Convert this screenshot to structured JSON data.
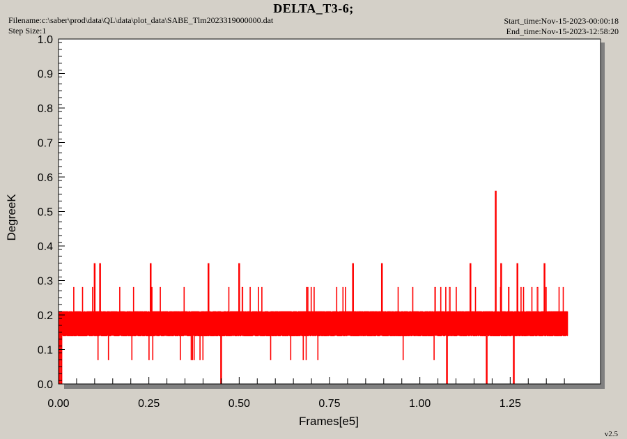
{
  "header": {
    "title": "DELTA_T3-6;",
    "filename": "Filename:c:\\saber\\prod\\data\\QL\\data\\plot_data\\SABE_Tlm2023319000000.dat",
    "step_size": "Step Size:1",
    "start_time": "Start_time:Nov-15-2023-00:00:18",
    "end_time": "End_time:Nov-15-2023-12:58:20",
    "version": "v2.5"
  },
  "colors": {
    "background": "#d4d0c8",
    "plot_area": "#ffffff",
    "series": "#ff0000",
    "shadow": "#808080"
  },
  "chart_data": {
    "type": "line",
    "title": "DELTA_T3-6;",
    "xlabel": "Frames[e5]",
    "ylabel": "DegreeK",
    "xlim": [
      0,
      1.5
    ],
    "ylim": [
      0,
      1.0
    ],
    "xticks": [
      "0.00",
      "0.25",
      "0.50",
      "0.75",
      "1.00",
      "1.25"
    ],
    "yticks": [
      "0.0",
      "0.1",
      "0.2",
      "0.3",
      "0.4",
      "0.5",
      "0.6",
      "0.7",
      "0.8",
      "0.9",
      "1.0"
    ],
    "grid": false,
    "legend": "none",
    "series": [
      {
        "x_range": [
          0,
          1.41
        ],
        "levels": [
          0.07,
          0.14,
          0.21,
          0.28
        ],
        "dense_band": [
          0.14,
          0.21
        ],
        "spikes": [
          {
            "x": 0.003,
            "y": 0.0
          },
          {
            "x": 0.008,
            "y": 0.0
          },
          {
            "x": 0.1,
            "y": 0.35
          },
          {
            "x": 0.115,
            "y": 0.35
          },
          {
            "x": 0.255,
            "y": 0.35
          },
          {
            "x": 0.415,
            "y": 0.35
          },
          {
            "x": 0.45,
            "y": 0.0
          },
          {
            "x": 0.5,
            "y": 0.35
          },
          {
            "x": 0.815,
            "y": 0.35
          },
          {
            "x": 0.895,
            "y": 0.35
          },
          {
            "x": 1.075,
            "y": 0.0
          },
          {
            "x": 1.14,
            "y": 0.35
          },
          {
            "x": 1.185,
            "y": 0.0
          },
          {
            "x": 1.21,
            "y": 0.56
          },
          {
            "x": 1.225,
            "y": 0.35
          },
          {
            "x": 1.26,
            "y": 0.0
          },
          {
            "x": 1.27,
            "y": 0.35
          },
          {
            "x": 1.345,
            "y": 0.35
          }
        ]
      }
    ]
  }
}
